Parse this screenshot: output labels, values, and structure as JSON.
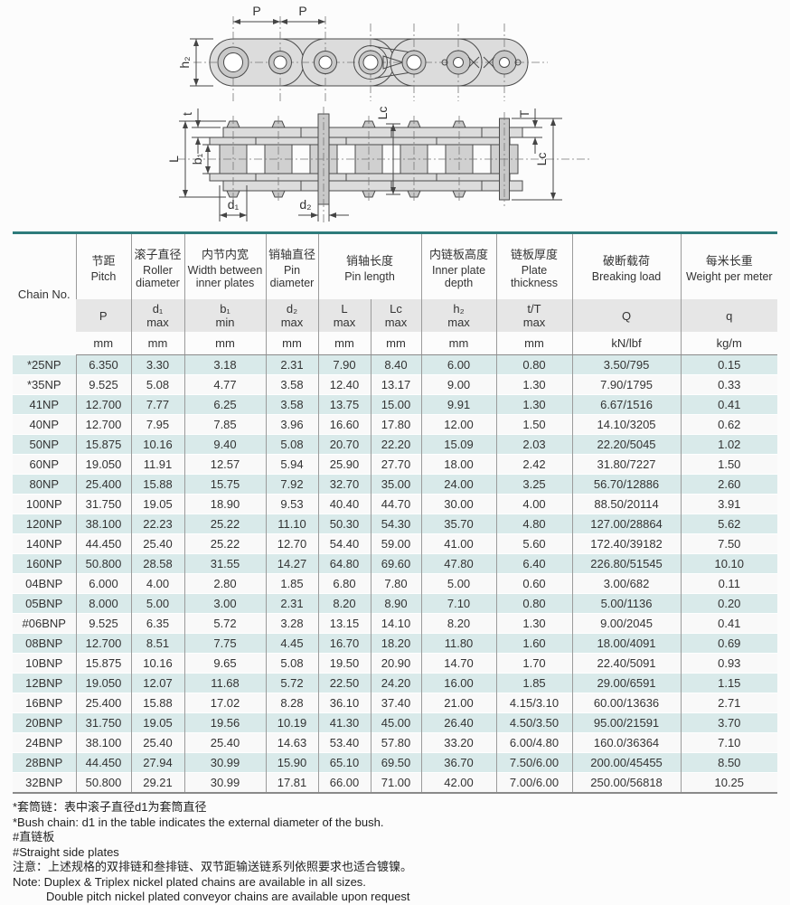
{
  "colors": {
    "table_accent": "#2e7b7b",
    "row_band": "#d9eaea",
    "header_band": "#e6e6e6",
    "drawing_fill": "#dcdcdc"
  },
  "diagram": {
    "pitch_label_1": "P",
    "pitch_label_2": "P",
    "plate_height_label": "h₂",
    "plate_thickness_label": "t",
    "pin_length_label": "L",
    "inner_width_label": "b₁",
    "roller_dia_label": "d₁",
    "pin_dia_label": "d₂",
    "conn_pin_length_label": "Lc",
    "outer_thickness_label": "T",
    "cotter_pin_length_label": "Lc"
  },
  "table": {
    "chain_no_label": "Chain No.",
    "columns": [
      {
        "zh": "节距",
        "en": "Pitch",
        "sym": "P",
        "qual": "",
        "unit": "mm"
      },
      {
        "zh": "滚子直径",
        "en": "Roller diameter",
        "sym": "d₁",
        "qual": "max",
        "unit": "mm"
      },
      {
        "zh": "内节内宽",
        "en": "Width between inner plates",
        "sym": "b₁",
        "qual": "min",
        "unit": "mm"
      },
      {
        "zh": "销轴直径",
        "en": "Pin diameter",
        "sym": "d₂",
        "qual": "max",
        "unit": "mm"
      },
      {
        "zh": "销轴长度",
        "en": "Pin length",
        "sym": "L",
        "qual": "max",
        "unit": "mm"
      },
      {
        "zh": "",
        "en": "",
        "sym": "Lc",
        "qual": "max",
        "unit": "mm"
      },
      {
        "zh": "内链板高度",
        "en": "Inner plate depth",
        "sym": "h₂",
        "qual": "max",
        "unit": "mm"
      },
      {
        "zh": "链板厚度",
        "en": "Plate thickness",
        "sym": "t/T",
        "qual": "max",
        "unit": "mm"
      },
      {
        "zh": "破断载荷",
        "en": "Breaking load",
        "sym": "Q",
        "qual": "",
        "unit": "kN/lbf"
      },
      {
        "zh": "每米长重",
        "en": "Weight per meter",
        "sym": "q",
        "qual": "",
        "unit": "kg/m"
      }
    ],
    "rows": [
      [
        "*25NP",
        "6.350",
        "3.30",
        "3.18",
        "2.31",
        "7.90",
        "8.40",
        "6.00",
        "0.80",
        "3.50/795",
        "0.15"
      ],
      [
        "*35NP",
        "9.525",
        "5.08",
        "4.77",
        "3.58",
        "12.40",
        "13.17",
        "9.00",
        "1.30",
        "7.90/1795",
        "0.33"
      ],
      [
        "41NP",
        "12.700",
        "7.77",
        "6.25",
        "3.58",
        "13.75",
        "15.00",
        "9.91",
        "1.30",
        "6.67/1516",
        "0.41"
      ],
      [
        "40NP",
        "12.700",
        "7.95",
        "7.85",
        "3.96",
        "16.60",
        "17.80",
        "12.00",
        "1.50",
        "14.10/3205",
        "0.62"
      ],
      [
        "50NP",
        "15.875",
        "10.16",
        "9.40",
        "5.08",
        "20.70",
        "22.20",
        "15.09",
        "2.03",
        "22.20/5045",
        "1.02"
      ],
      [
        "60NP",
        "19.050",
        "11.91",
        "12.57",
        "5.94",
        "25.90",
        "27.70",
        "18.00",
        "2.42",
        "31.80/7227",
        "1.50"
      ],
      [
        "80NP",
        "25.400",
        "15.88",
        "15.75",
        "7.92",
        "32.70",
        "35.00",
        "24.00",
        "3.25",
        "56.70/12886",
        "2.60"
      ],
      [
        "100NP",
        "31.750",
        "19.05",
        "18.90",
        "9.53",
        "40.40",
        "44.70",
        "30.00",
        "4.00",
        "88.50/20114",
        "3.91"
      ],
      [
        "120NP",
        "38.100",
        "22.23",
        "25.22",
        "11.10",
        "50.30",
        "54.30",
        "35.70",
        "4.80",
        "127.00/28864",
        "5.62"
      ],
      [
        "140NP",
        "44.450",
        "25.40",
        "25.22",
        "12.70",
        "54.40",
        "59.00",
        "41.00",
        "5.60",
        "172.40/39182",
        "7.50"
      ],
      [
        "160NP",
        "50.800",
        "28.58",
        "31.55",
        "14.27",
        "64.80",
        "69.60",
        "47.80",
        "6.40",
        "226.80/51545",
        "10.10"
      ],
      [
        "04BNP",
        "6.000",
        "4.00",
        "2.80",
        "1.85",
        "6.80",
        "7.80",
        "5.00",
        "0.60",
        "3.00/682",
        "0.11"
      ],
      [
        "05BNP",
        "8.000",
        "5.00",
        "3.00",
        "2.31",
        "8.20",
        "8.90",
        "7.10",
        "0.80",
        "5.00/1136",
        "0.20"
      ],
      [
        "#06BNP",
        "9.525",
        "6.35",
        "5.72",
        "3.28",
        "13.15",
        "14.10",
        "8.20",
        "1.30",
        "9.00/2045",
        "0.41"
      ],
      [
        "08BNP",
        "12.700",
        "8.51",
        "7.75",
        "4.45",
        "16.70",
        "18.20",
        "11.80",
        "1.60",
        "18.00/4091",
        "0.69"
      ],
      [
        "10BNP",
        "15.875",
        "10.16",
        "9.65",
        "5.08",
        "19.50",
        "20.90",
        "14.70",
        "1.70",
        "22.40/5091",
        "0.93"
      ],
      [
        "12BNP",
        "19.050",
        "12.07",
        "11.68",
        "5.72",
        "22.50",
        "24.20",
        "16.00",
        "1.85",
        "29.00/6591",
        "1.15"
      ],
      [
        "16BNP",
        "25.400",
        "15.88",
        "17.02",
        "8.28",
        "36.10",
        "37.40",
        "21.00",
        "4.15/3.10",
        "60.00/13636",
        "2.71"
      ],
      [
        "20BNP",
        "31.750",
        "19.05",
        "19.56",
        "10.19",
        "41.30",
        "45.00",
        "26.40",
        "4.50/3.50",
        "95.00/21591",
        "3.70"
      ],
      [
        "24BNP",
        "38.100",
        "25.40",
        "25.40",
        "14.63",
        "53.40",
        "57.80",
        "33.20",
        "6.00/4.80",
        "160.0/36364",
        "7.10"
      ],
      [
        "28BNP",
        "44.450",
        "27.94",
        "30.99",
        "15.90",
        "65.10",
        "69.50",
        "36.70",
        "7.50/6.00",
        "200.00/45455",
        "8.50"
      ],
      [
        "32BNP",
        "50.800",
        "29.21",
        "30.99",
        "17.81",
        "66.00",
        "71.00",
        "42.00",
        "7.00/6.00",
        "250.00/56818",
        "10.25"
      ]
    ]
  },
  "footnotes": [
    "*套筒链：表中滚子直径d1为套筒直径",
    "*Bush chain: d1 in the table indicates the external diameter of the bush.",
    "#直链板",
    "#Straight side plates",
    "注意：上述规格的双排链和叁排链、双节距输送链系列依照要求也适合镀镍。",
    "Note:  Duplex & Triplex nickel plated chains are available in all sizes.",
    "Double pitch nickel plated conveyor chains are available upon request"
  ]
}
